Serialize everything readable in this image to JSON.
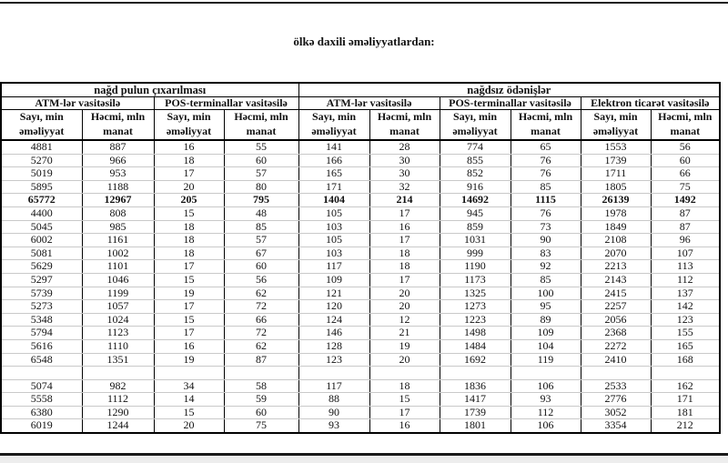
{
  "page": {
    "title": "ölkə daxili əməliyyatlardan:"
  },
  "table": {
    "group_headers": [
      "nağd pulun çıxarılması",
      "nağdsız ödənişlər"
    ],
    "method_headers": [
      "ATM-lər vasitəsilə",
      "POS-terminallar vasitəsilə",
      "ATM-lər vasitəsilə",
      "POS-terminallar vasitəsilə",
      "Elektron ticarət vasitəsilə"
    ],
    "column_headers": [
      "Sayı, min\nəməliyyat",
      "Həcmi, mln\nmanat",
      "Sayı, min\nəməliyyat",
      "Həcmi, mln\nmanat",
      "Sayı, min\nəməliyyat",
      "Həcmi, mln\nmanat",
      "Sayı, min\nəməliyyat",
      "Həcmi, mln\nmanat",
      "Sayı, min\nəməliyyat",
      "Həcmi, mln\nmanat"
    ],
    "total_row_index": 4,
    "rows": [
      [
        "4881",
        "887",
        "16",
        "55",
        "141",
        "28",
        "774",
        "65",
        "1553",
        "56"
      ],
      [
        "5270",
        "966",
        "18",
        "60",
        "166",
        "30",
        "855",
        "76",
        "1739",
        "60"
      ],
      [
        "5019",
        "953",
        "17",
        "57",
        "165",
        "30",
        "852",
        "76",
        "1711",
        "66"
      ],
      [
        "5895",
        "1188",
        "20",
        "80",
        "171",
        "32",
        "916",
        "85",
        "1805",
        "75"
      ],
      [
        "65772",
        "12967",
        "205",
        "795",
        "1404",
        "214",
        "14692",
        "1115",
        "26139",
        "1492"
      ],
      [
        "4400",
        "808",
        "15",
        "48",
        "105",
        "17",
        "945",
        "76",
        "1978",
        "87"
      ],
      [
        "5045",
        "985",
        "18",
        "85",
        "103",
        "16",
        "859",
        "73",
        "1849",
        "87"
      ],
      [
        "6002",
        "1161",
        "18",
        "57",
        "105",
        "17",
        "1031",
        "90",
        "2108",
        "96"
      ],
      [
        "5081",
        "1002",
        "18",
        "67",
        "103",
        "18",
        "999",
        "83",
        "2070",
        "107"
      ],
      [
        "5629",
        "1101",
        "17",
        "60",
        "117",
        "18",
        "1190",
        "92",
        "2213",
        "113"
      ],
      [
        "5297",
        "1046",
        "15",
        "56",
        "109",
        "17",
        "1173",
        "85",
        "2143",
        "112"
      ],
      [
        "5739",
        "1199",
        "19",
        "62",
        "121",
        "20",
        "1325",
        "100",
        "2415",
        "137"
      ],
      [
        "5273",
        "1057",
        "17",
        "72",
        "120",
        "20",
        "1273",
        "95",
        "2257",
        "142"
      ],
      [
        "5348",
        "1024",
        "15",
        "66",
        "124",
        "12",
        "1223",
        "89",
        "2056",
        "123"
      ],
      [
        "5794",
        "1123",
        "17",
        "72",
        "146",
        "21",
        "1498",
        "109",
        "2368",
        "155"
      ],
      [
        "5616",
        "1110",
        "16",
        "62",
        "128",
        "19",
        "1484",
        "104",
        "2272",
        "165"
      ],
      [
        "6548",
        "1351",
        "19",
        "87",
        "123",
        "20",
        "1692",
        "119",
        "2410",
        "168"
      ],
      [
        "",
        "",
        "",
        "",
        "",
        "",
        "",
        "",
        "",
        ""
      ],
      [
        "5074",
        "982",
        "34",
        "58",
        "117",
        "18",
        "1836",
        "106",
        "2533",
        "162"
      ],
      [
        "5558",
        "1112",
        "14",
        "59",
        "88",
        "15",
        "1417",
        "93",
        "2776",
        "171"
      ],
      [
        "6380",
        "1290",
        "15",
        "60",
        "90",
        "17",
        "1739",
        "112",
        "3052",
        "181"
      ],
      [
        "6019",
        "1244",
        "20",
        "75",
        "93",
        "16",
        "1801",
        "106",
        "3354",
        "212"
      ]
    ],
    "colors": {
      "border_black": "#000000",
      "row_gridline": "#c9c9c9",
      "rule_black": "#1a1a1a",
      "footer_gray": "#ededed"
    }
  }
}
